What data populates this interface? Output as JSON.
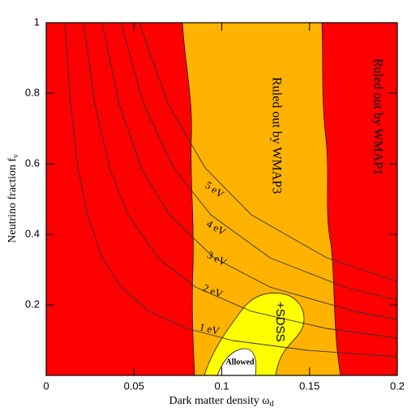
{
  "chart_data": {
    "type": "contour",
    "x_label": {
      "text": "Dark matter density ω",
      "subscript": "d"
    },
    "y_label": {
      "text": "Neutrino fraction f",
      "subscript": "ν"
    },
    "xlim": [
      0,
      0.2
    ],
    "ylim": [
      0,
      1
    ],
    "xticks": [
      0,
      0.05,
      {
        "value": 0.1,
        "label": "0.1"
      },
      0.15,
      {
        "value": 0.2,
        "label": "0.2"
      }
    ],
    "yticks": [
      0.2,
      0.4,
      0.6,
      0.8,
      1
    ],
    "regions": [
      {
        "label": "Ruled out by WMAP1",
        "color": "#ff0000"
      },
      {
        "label": "Ruled out by WMAP3",
        "color": "#ffb300"
      },
      {
        "label": "+SDSS",
        "color": "#ffff00"
      },
      {
        "label": "Allowed",
        "color": "#ffffff"
      }
    ],
    "curve_labels": [
      "5 eV",
      "4 eV",
      "3 eV",
      "2 eV",
      "1 eV"
    ]
  }
}
